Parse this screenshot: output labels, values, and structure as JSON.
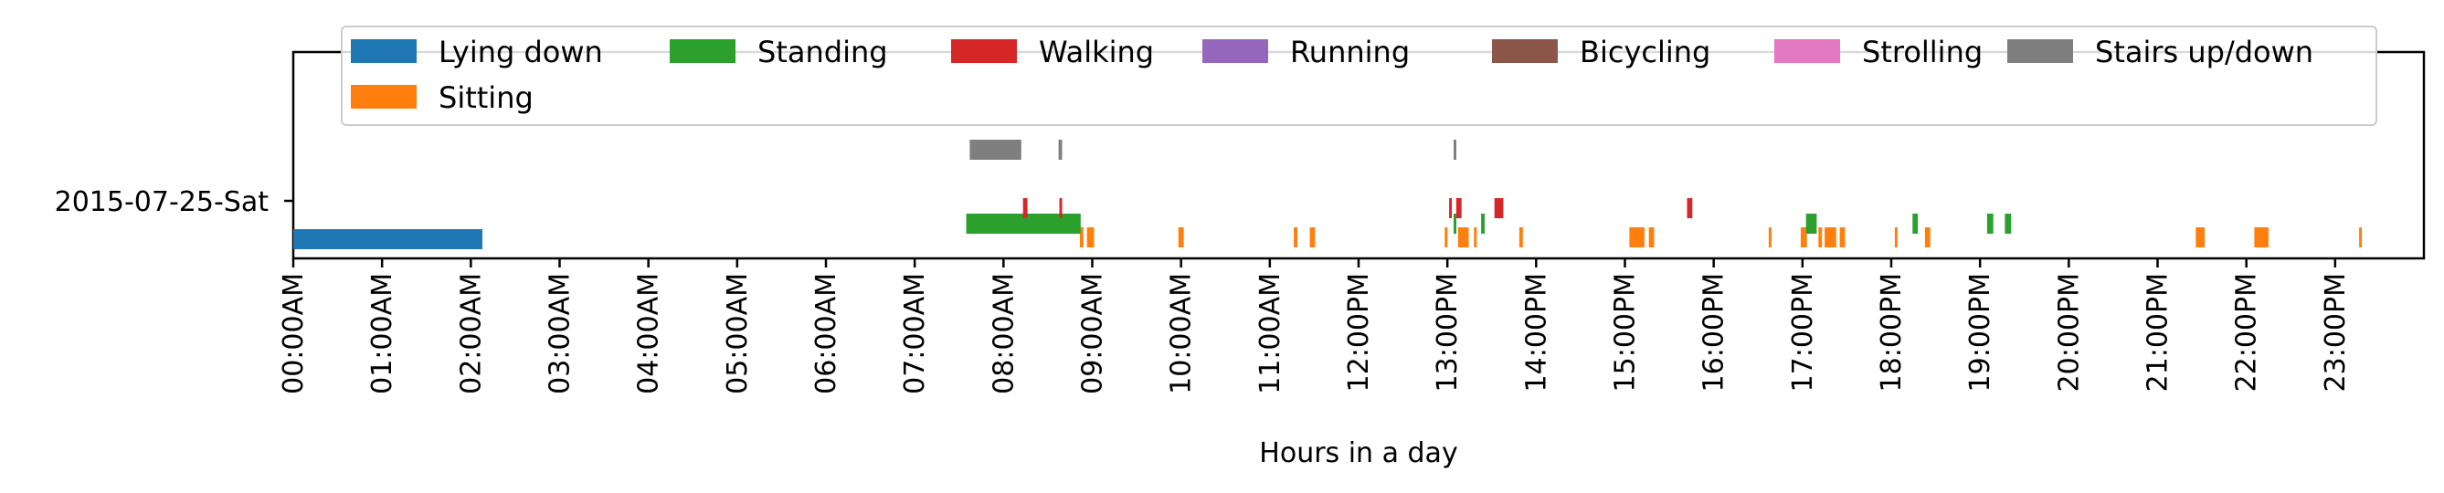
{
  "chart_data": {
    "type": "broken-barh timeline",
    "xlabel": "Hours in a day",
    "ylabel": "",
    "xlim": [
      0,
      24
    ],
    "date_label": "2015-07-25-Sat",
    "x_ticks": [
      {
        "hour": 0,
        "label": "00:00AM"
      },
      {
        "hour": 1,
        "label": "01:00AM"
      },
      {
        "hour": 2,
        "label": "02:00AM"
      },
      {
        "hour": 3,
        "label": "03:00AM"
      },
      {
        "hour": 4,
        "label": "04:00AM"
      },
      {
        "hour": 5,
        "label": "05:00AM"
      },
      {
        "hour": 6,
        "label": "06:00AM"
      },
      {
        "hour": 7,
        "label": "07:00AM"
      },
      {
        "hour": 8,
        "label": "08:00AM"
      },
      {
        "hour": 9,
        "label": "09:00AM"
      },
      {
        "hour": 10,
        "label": "10:00AM"
      },
      {
        "hour": 11,
        "label": "11:00AM"
      },
      {
        "hour": 12,
        "label": "12:00PM"
      },
      {
        "hour": 13,
        "label": "13:00PM"
      },
      {
        "hour": 14,
        "label": "14:00PM"
      },
      {
        "hour": 15,
        "label": "15:00PM"
      },
      {
        "hour": 16,
        "label": "16:00PM"
      },
      {
        "hour": 17,
        "label": "17:00PM"
      },
      {
        "hour": 18,
        "label": "18:00PM"
      },
      {
        "hour": 19,
        "label": "19:00PM"
      },
      {
        "hour": 20,
        "label": "20:00PM"
      },
      {
        "hour": 21,
        "label": "21:00PM"
      },
      {
        "hour": 22,
        "label": "22:00PM"
      },
      {
        "hour": 23,
        "label": "23:00PM"
      }
    ],
    "legend_placement": "top, two rows, overlapping the plot",
    "activities": [
      {
        "name": "Lying down",
        "color": "#1f77b4",
        "lane": 0,
        "intervals": [
          [
            0.0,
            2.13
          ]
        ]
      },
      {
        "name": "Sitting",
        "color": "#ff7f0e",
        "lane": 1,
        "intervals": [
          [
            8.86,
            8.9
          ],
          [
            8.94,
            9.02
          ],
          [
            9.97,
            10.03
          ],
          [
            11.27,
            11.31
          ],
          [
            11.45,
            11.51
          ],
          [
            12.97,
            13.0
          ],
          [
            13.12,
            13.24
          ],
          [
            13.3,
            13.33
          ],
          [
            13.81,
            13.85
          ],
          [
            15.05,
            15.22
          ],
          [
            15.27,
            15.33
          ],
          [
            16.62,
            16.65
          ],
          [
            16.98,
            17.05
          ],
          [
            17.18,
            17.22
          ],
          [
            17.25,
            17.38
          ],
          [
            17.42,
            17.48
          ],
          [
            18.04,
            18.07
          ],
          [
            18.38,
            18.44
          ],
          [
            21.43,
            21.53
          ],
          [
            22.09,
            22.25
          ],
          [
            23.27,
            23.3
          ]
        ]
      },
      {
        "name": "Standing",
        "color": "#2ca02c",
        "lane": 2,
        "intervals": [
          [
            7.58,
            8.87
          ],
          [
            13.07,
            13.1
          ],
          [
            13.38,
            13.42
          ],
          [
            17.04,
            17.16
          ],
          [
            18.24,
            18.3
          ],
          [
            19.08,
            19.15
          ],
          [
            19.28,
            19.35
          ]
        ]
      },
      {
        "name": "Walking",
        "color": "#d62728",
        "lane": 3,
        "intervals": [
          [
            8.22,
            8.27
          ],
          [
            8.63,
            8.66
          ],
          [
            13.02,
            13.05
          ],
          [
            13.1,
            13.16
          ],
          [
            13.53,
            13.63
          ],
          [
            15.7,
            15.76
          ]
        ]
      },
      {
        "name": "Running",
        "color": "#9467bd",
        "lane": 4,
        "intervals": []
      },
      {
        "name": "Bicycling",
        "color": "#8c564b",
        "lane": 5,
        "intervals": []
      },
      {
        "name": "Strolling",
        "color": "#e377c2",
        "lane": 6,
        "intervals": []
      },
      {
        "name": "Stairs up/down",
        "color": "#7f7f7f",
        "lane": 7,
        "intervals": [
          [
            7.62,
            8.2
          ],
          [
            8.62,
            8.66
          ],
          [
            13.07,
            13.1
          ]
        ]
      }
    ],
    "legend_order": [
      "Lying down",
      "Standing",
      "Walking",
      "Running",
      "Bicycling",
      "Strolling",
      "Stairs up/down",
      "Sitting"
    ]
  }
}
